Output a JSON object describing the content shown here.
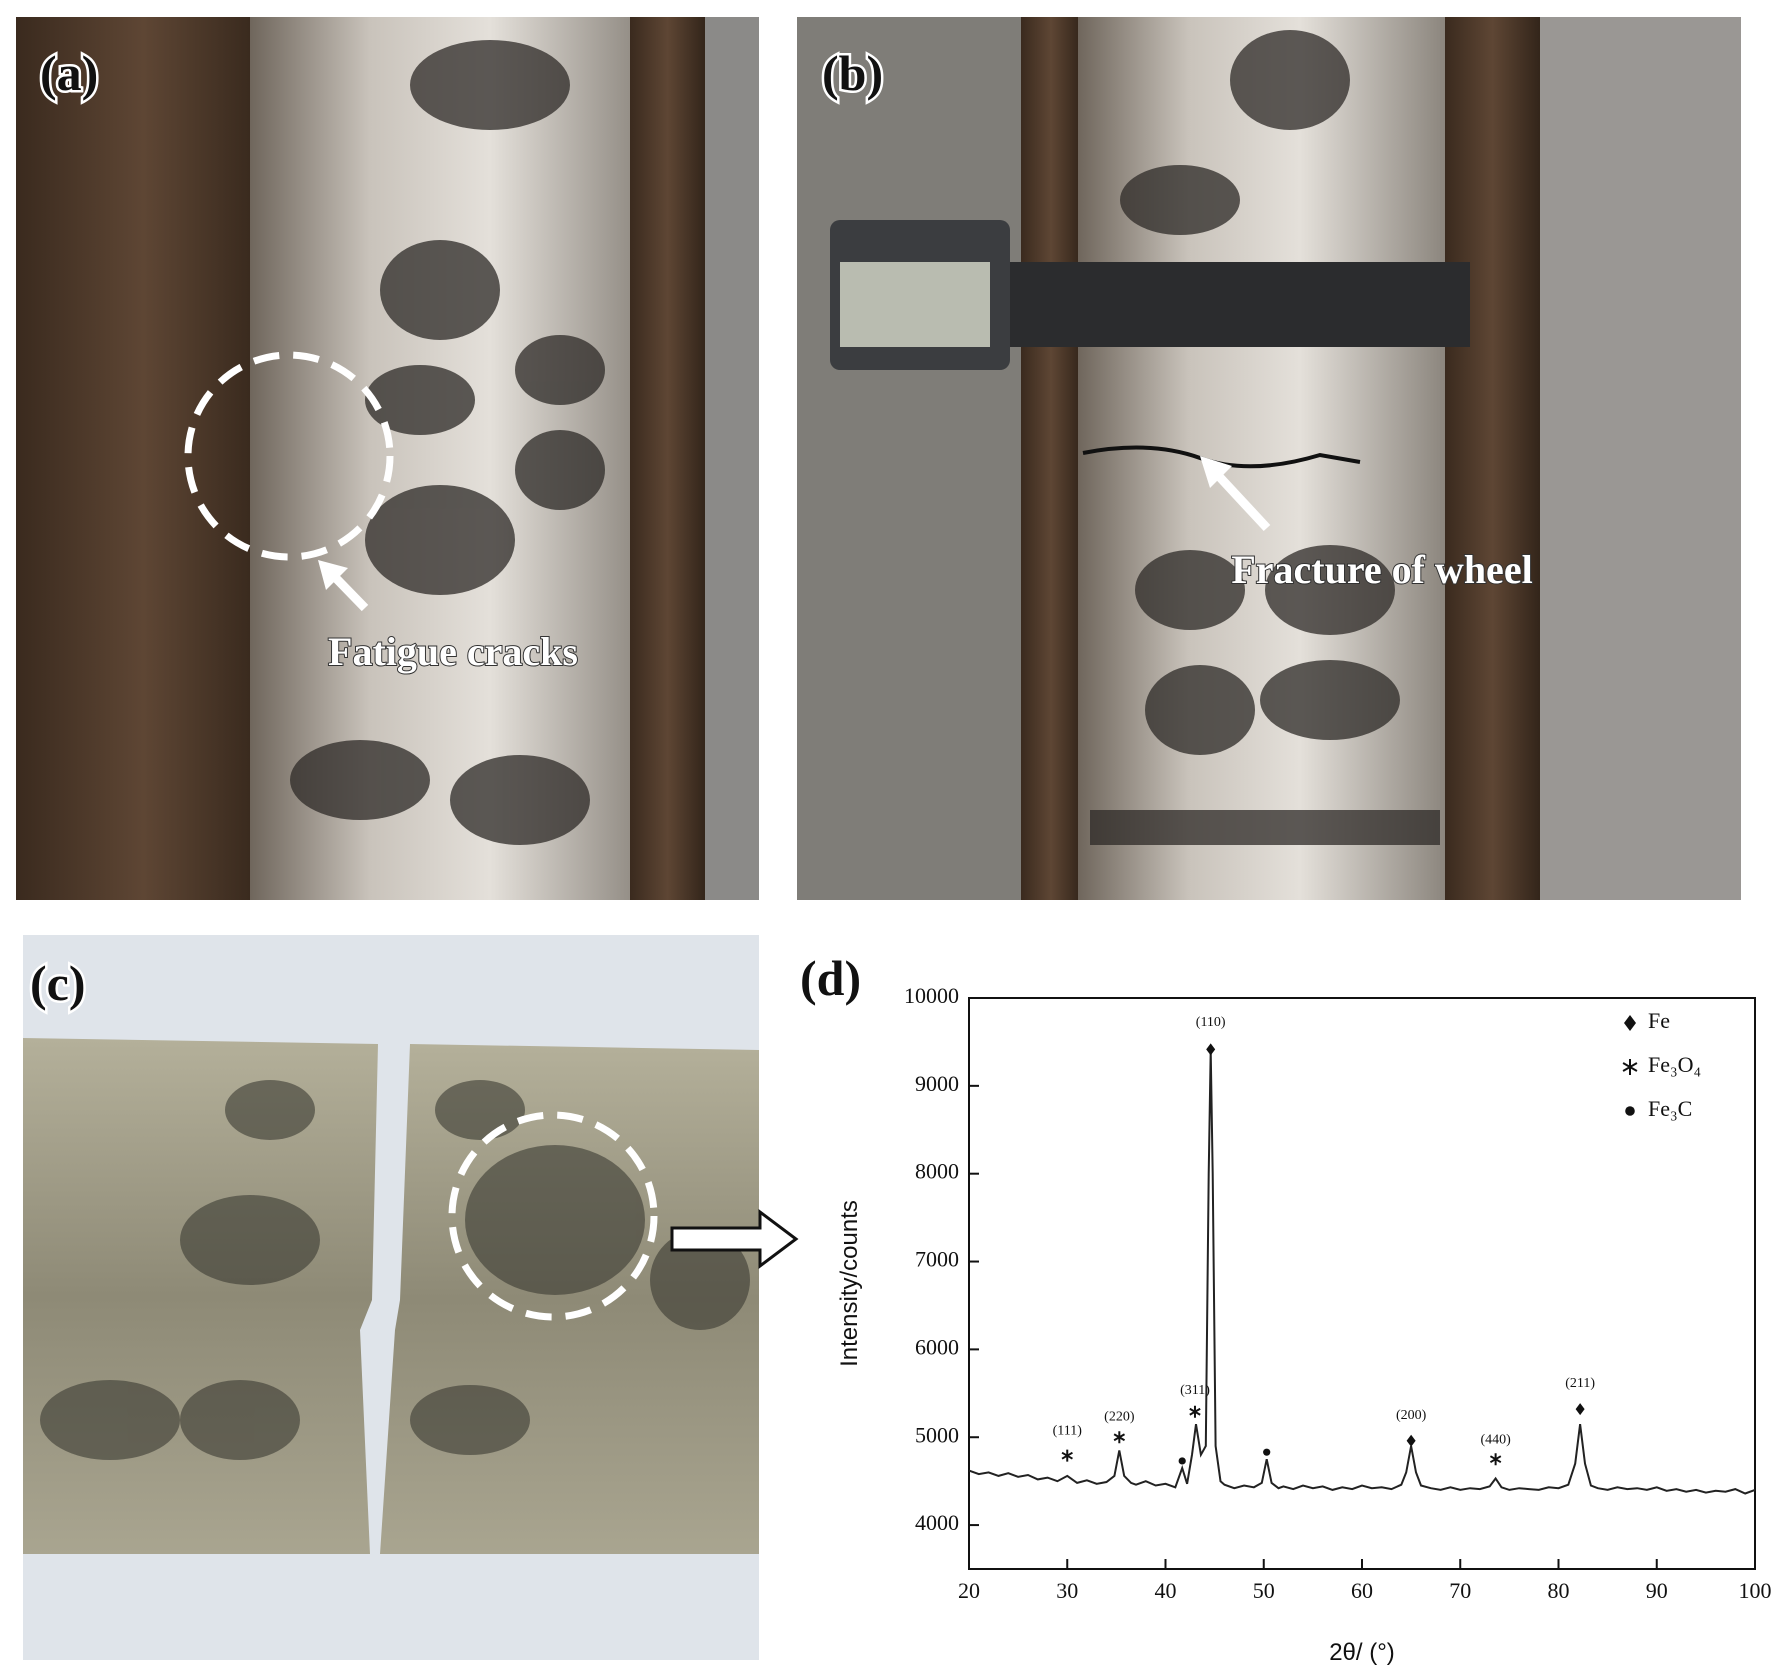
{
  "panels": {
    "a": {
      "label": "(a)",
      "annotation": "Fatigue cracks"
    },
    "b": {
      "label": "(b)",
      "annotation": "Fracture of wheel"
    },
    "c": {
      "label": "(c)"
    },
    "d": {
      "label": "(d)"
    }
  },
  "chart_data": {
    "type": "line",
    "x_label": "2θ/ (°)",
    "y_label": "Intensity/counts",
    "xlim": [
      20,
      100
    ],
    "ylim": [
      3500,
      10000
    ],
    "xticks": [
      20,
      30,
      40,
      50,
      60,
      70,
      80,
      90,
      100
    ],
    "yticks": [
      4000,
      5000,
      6000,
      7000,
      8000,
      9000,
      10000
    ],
    "series": [
      {
        "color": "#222222",
        "x": [
          20,
          21,
          22,
          23,
          24,
          25,
          26,
          27,
          28,
          29,
          30,
          31,
          32,
          33,
          34,
          34.8,
          35.3,
          35.8,
          36.5,
          37,
          38,
          39,
          40,
          41,
          41.7,
          42.2,
          42.7,
          43.1,
          43.6,
          44.1,
          44.4,
          44.6,
          44.8,
          45.1,
          45.6,
          46,
          47,
          48,
          49,
          49.8,
          50.3,
          50.8,
          51.5,
          52,
          53,
          54,
          55,
          56,
          57,
          58,
          59,
          60,
          61,
          62,
          63,
          64,
          64.5,
          65,
          65.5,
          66,
          67,
          68,
          69,
          70,
          71,
          72,
          73,
          73.6,
          74.2,
          75,
          76,
          77,
          78,
          79,
          80,
          81,
          81.7,
          82.2,
          82.7,
          83.3,
          84,
          85,
          86,
          87,
          88,
          89,
          90,
          91,
          92,
          93,
          94,
          95,
          96,
          97,
          98,
          99,
          100
        ],
        "values": [
          4620,
          4580,
          4600,
          4560,
          4590,
          4550,
          4570,
          4520,
          4540,
          4500,
          4560,
          4480,
          4510,
          4470,
          4490,
          4560,
          4850,
          4560,
          4480,
          4460,
          4500,
          4450,
          4470,
          4430,
          4650,
          4470,
          4800,
          5150,
          4800,
          4900,
          8000,
          9400,
          8000,
          4900,
          4500,
          4460,
          4420,
          4450,
          4430,
          4480,
          4750,
          4480,
          4420,
          4440,
          4410,
          4450,
          4420,
          4440,
          4400,
          4430,
          4410,
          4450,
          4420,
          4430,
          4410,
          4460,
          4600,
          4900,
          4600,
          4450,
          4420,
          4400,
          4430,
          4400,
          4420,
          4410,
          4440,
          4530,
          4430,
          4400,
          4420,
          4410,
          4400,
          4430,
          4420,
          4460,
          4700,
          5150,
          4700,
          4450,
          4420,
          4400,
          4430,
          4410,
          4420,
          4400,
          4430,
          4390,
          4410,
          4380,
          4400,
          4370,
          4390,
          4380,
          4410,
          4360,
          4400
        ]
      }
    ],
    "phases": [
      {
        "name": "Fe",
        "marker": "diamond",
        "peaks": [
          {
            "x": 44.6,
            "y": 9415
          },
          {
            "x": 65,
            "y": 4960
          },
          {
            "x": 82.2,
            "y": 5320
          }
        ]
      },
      {
        "name": "Fe₃O₄",
        "marker": "star",
        "peaks": [
          {
            "x": 30,
            "y": 4790
          },
          {
            "x": 35.3,
            "y": 5000
          },
          {
            "x": 43,
            "y": 5290
          },
          {
            "x": 73.6,
            "y": 4750
          }
        ]
      },
      {
        "name": "Fe₃C",
        "marker": "dot",
        "peaks": [
          {
            "x": 41.7,
            "y": 4730
          },
          {
            "x": 50.3,
            "y": 4830
          }
        ]
      }
    ],
    "peak_labels": [
      {
        "label": "(111)",
        "x": 30,
        "y": 5030
      },
      {
        "label": "(220)",
        "x": 35.3,
        "y": 5190
      },
      {
        "label": "(311)",
        "x": 43,
        "y": 5490
      },
      {
        "label": "(110)",
        "x": 44.6,
        "y": 9680
      },
      {
        "label": "(200)",
        "x": 65,
        "y": 5210
      },
      {
        "label": "(440)",
        "x": 73.6,
        "y": 4930
      },
      {
        "label": "(211)",
        "x": 82.2,
        "y": 5570
      }
    ],
    "legend": "upper right"
  }
}
